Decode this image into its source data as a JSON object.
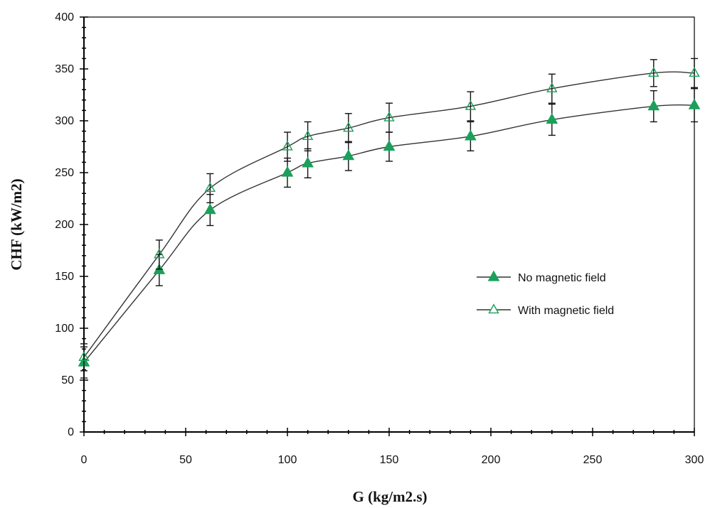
{
  "chart_data": {
    "type": "line",
    "xlabel": "G (kg/m2.s)",
    "ylabel": "CHF (kW/m2)",
    "xlim": [
      0,
      300
    ],
    "ylim": [
      0,
      400
    ],
    "xticks": [
      0,
      50,
      100,
      150,
      200,
      250,
      300
    ],
    "yticks": [
      0,
      50,
      100,
      150,
      200,
      250,
      300,
      350,
      400
    ],
    "grid": false,
    "legend_position": "right-middle",
    "series": [
      {
        "name": "No magnetic field",
        "marker": "filled-triangle",
        "color": "#1aa05a",
        "x": [
          0,
          37,
          62,
          100,
          110,
          130,
          150,
          190,
          230,
          280,
          300
        ],
        "y": [
          67,
          156,
          214,
          250,
          259,
          266,
          275,
          285,
          301,
          314,
          315
        ],
        "error": [
          15,
          15,
          15,
          14,
          14,
          14,
          14,
          14,
          15,
          15,
          16
        ]
      },
      {
        "name": "With magnetic field",
        "marker": "hollow-triangle",
        "color": "#1aa05a",
        "x": [
          0,
          37,
          62,
          100,
          110,
          130,
          150,
          190,
          230,
          280,
          300
        ],
        "y": [
          72,
          171,
          235,
          275,
          285,
          293,
          303,
          314,
          331,
          346,
          346
        ],
        "error": [
          13,
          14,
          14,
          14,
          14,
          14,
          14,
          14,
          14,
          13,
          14
        ]
      }
    ]
  }
}
